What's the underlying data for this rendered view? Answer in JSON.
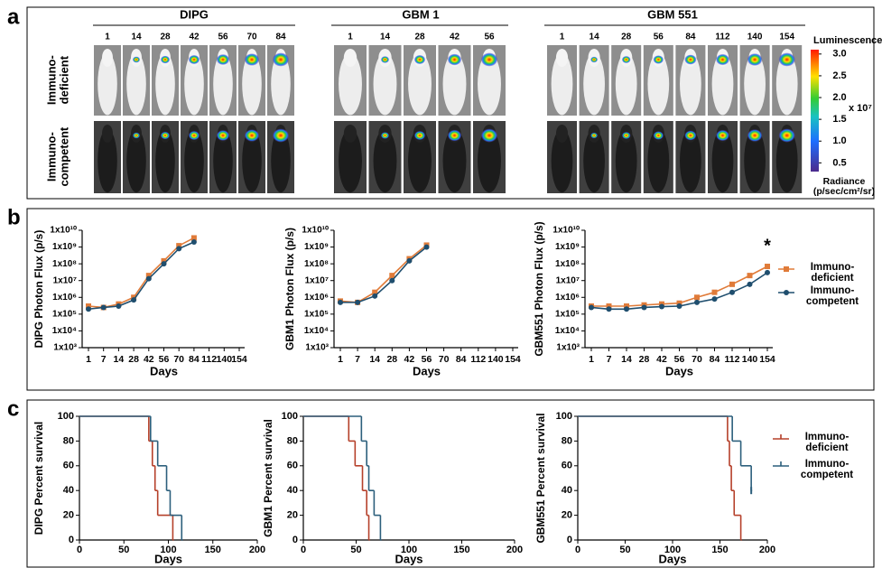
{
  "panel_labels": [
    "a",
    "b",
    "c"
  ],
  "panel_a": {
    "groups": [
      {
        "title": "DIPG",
        "days": [
          1,
          14,
          28,
          42,
          56,
          70,
          84
        ]
      },
      {
        "title": "GBM 1",
        "days": [
          1,
          14,
          28,
          42,
          56
        ]
      },
      {
        "title": "GBM 551",
        "days": [
          1,
          14,
          28,
          56,
          84,
          112,
          140,
          154
        ]
      }
    ],
    "rows": [
      "Immuno-deficient",
      "Immuno-competent"
    ],
    "colorbar": {
      "title": "Luminescence",
      "clim": [
        0.3,
        3.1
      ],
      "ticks": [
        {
          "value": 3,
          "label": "3.0"
        },
        {
          "value": 2.5,
          "label": "2.5"
        },
        {
          "value": 2,
          "label": "2.0"
        },
        {
          "value": 1.5,
          "label": "1.5"
        },
        {
          "value": 1,
          "label": "1.0"
        },
        {
          "value": 0.5,
          "label": "0.5"
        }
      ],
      "scale_label": "x 10⁷",
      "unit_label": "Radiance (p/sec/cm²/sr)"
    }
  },
  "chart_data": [
    {
      "type": "line",
      "y_label": "DIPG Photon Flux (p/s)",
      "x_label": "Days",
      "log_scale": true,
      "categories": [
        1,
        7,
        14,
        28,
        42,
        56,
        70,
        84,
        112,
        140,
        154
      ],
      "ylim": [
        1000,
        10000000000
      ],
      "yticks": [
        {
          "value": 10000000000,
          "label": "1x10¹⁰"
        },
        {
          "value": 1000000000,
          "label": "1x10⁹"
        },
        {
          "value": 100000000,
          "label": "1x10⁸"
        },
        {
          "value": 10000000,
          "label": "1x10⁷"
        },
        {
          "value": 1000000,
          "label": "1x10⁶"
        },
        {
          "value": 100000,
          "label": "1x10⁵"
        },
        {
          "value": 10000,
          "label": "1x10⁴"
        },
        {
          "value": 1000,
          "label": "1x10³"
        }
      ],
      "series": [
        {
          "name": "Immuno-deficient",
          "color": "#e07b39",
          "marker": "square",
          "values": [
            300000,
            250000,
            400000,
            1000000,
            20000000,
            150000000,
            1200000000,
            3500000000,
            null,
            null,
            null
          ]
        },
        {
          "name": "Immuno-competent",
          "color": "#1f4e6e",
          "marker": "circle",
          "values": [
            200000,
            250000,
            300000,
            700000,
            13000000,
            100000000,
            800000000,
            2000000000,
            null,
            null,
            null
          ]
        }
      ]
    },
    {
      "type": "line",
      "y_label": "GBM1 Photon Flux (p/s)",
      "x_label": "Days",
      "log_scale": true,
      "categories": [
        1,
        7,
        14,
        28,
        42,
        56,
        70,
        84,
        112,
        140,
        154
      ],
      "ylim": [
        1000,
        10000000000
      ],
      "yticks": [
        {
          "value": 10000000000,
          "label": "1x10¹⁰"
        },
        {
          "value": 1000000000,
          "label": "1x10⁹"
        },
        {
          "value": 100000000,
          "label": "1x10⁸"
        },
        {
          "value": 10000000,
          "label": "1x10⁷"
        },
        {
          "value": 1000000,
          "label": "1x10⁶"
        },
        {
          "value": 100000,
          "label": "1x10⁵"
        },
        {
          "value": 10000,
          "label": "1x10⁴"
        },
        {
          "value": 1000,
          "label": "1x10³"
        }
      ],
      "series": [
        {
          "name": "Immuno-deficient",
          "color": "#e07b39",
          "marker": "square",
          "values": [
            600000,
            500000,
            2000000,
            20000000,
            200000000,
            1300000000,
            null,
            null,
            null,
            null,
            null
          ]
        },
        {
          "name": "Immuno-competent",
          "color": "#1f4e6e",
          "marker": "circle",
          "values": [
            500000,
            500000,
            1200000,
            10000000,
            150000000,
            1000000000,
            null,
            null,
            null,
            null,
            null
          ]
        }
      ]
    },
    {
      "type": "line",
      "y_label": "GBM551 Photon Flux (p/s)",
      "x_label": "Days",
      "log_scale": true,
      "legend": "right",
      "annotation": "*",
      "categories": [
        1,
        7,
        14,
        28,
        42,
        56,
        70,
        84,
        112,
        140,
        154
      ],
      "ylim": [
        1000,
        10000000000
      ],
      "yticks": [
        {
          "value": 10000000000,
          "label": "1x10¹⁰"
        },
        {
          "value": 1000000000,
          "label": "1x10⁹"
        },
        {
          "value": 100000000,
          "label": "1x10⁸"
        },
        {
          "value": 10000000,
          "label": "1x10⁷"
        },
        {
          "value": 1000000,
          "label": "1x10⁶"
        },
        {
          "value": 100000,
          "label": "1x10⁵"
        },
        {
          "value": 10000,
          "label": "1x10⁴"
        },
        {
          "value": 1000,
          "label": "1x10³"
        }
      ],
      "series": [
        {
          "name": "Immuno-deficient",
          "color": "#e07b39",
          "marker": "square",
          "values": [
            300000,
            300000,
            300000,
            350000,
            400000,
            450000,
            1000000,
            2000000,
            6000000,
            20000000,
            70000000
          ]
        },
        {
          "name": "Immuno-competent",
          "color": "#1f4e6e",
          "marker": "circle",
          "values": [
            250000,
            200000,
            200000,
            250000,
            280000,
            300000,
            500000,
            800000,
            2000000,
            6000000,
            30000000
          ]
        }
      ]
    },
    {
      "type": "survival",
      "y_label": "DIPG Percent survival",
      "x_label": "Days",
      "xlim": [
        0,
        200
      ],
      "xticks": [
        0,
        50,
        100,
        150,
        200
      ],
      "ylim": [
        0,
        100
      ],
      "yticks": [
        0,
        20,
        40,
        60,
        80,
        100
      ],
      "series": [
        {
          "name": "Immuno-deficient",
          "color": "#b5402a",
          "x": [
            0,
            78,
            82,
            85,
            88,
            105
          ],
          "values": [
            100,
            80,
            60,
            40,
            20,
            0
          ]
        },
        {
          "name": "Immuno-competent",
          "color": "#2c5f7c",
          "x": [
            0,
            80,
            88,
            98,
            102,
            115
          ],
          "values": [
            100,
            80,
            60,
            40,
            20,
            0
          ]
        }
      ]
    },
    {
      "type": "survival",
      "y_label": "GBM1 Percent survival",
      "x_label": "Days",
      "xlim": [
        0,
        200
      ],
      "xticks": [
        0,
        50,
        100,
        150,
        200
      ],
      "ylim": [
        0,
        100
      ],
      "yticks": [
        0,
        20,
        40,
        60,
        80,
        100
      ],
      "series": [
        {
          "name": "Immuno-deficient",
          "color": "#b5402a",
          "x": [
            0,
            43,
            49,
            56,
            60,
            62
          ],
          "values": [
            100,
            80,
            60,
            40,
            20,
            0
          ]
        },
        {
          "name": "Immuno-competent",
          "color": "#2c5f7c",
          "x": [
            0,
            55,
            60,
            62,
            67,
            73
          ],
          "values": [
            100,
            80,
            60,
            40,
            20,
            0
          ]
        }
      ]
    },
    {
      "type": "survival",
      "y_label": "GBM551 Percent survival",
      "x_label": "Days",
      "legend": "right",
      "xlim": [
        0,
        200
      ],
      "xticks": [
        0,
        50,
        100,
        150,
        200
      ],
      "ylim": [
        0,
        100
      ],
      "yticks": [
        0,
        20,
        40,
        60,
        80,
        100
      ],
      "series": [
        {
          "name": "Immuno-deficient",
          "color": "#b5402a",
          "x": [
            0,
            158,
            160,
            162,
            165,
            172
          ],
          "values": [
            100,
            80,
            60,
            40,
            20,
            0
          ]
        },
        {
          "name": "Immuno-competent",
          "color": "#2c5f7c",
          "censored": true,
          "x": [
            0,
            163,
            172,
            183
          ],
          "values": [
            100,
            80,
            60,
            40
          ]
        }
      ]
    }
  ]
}
